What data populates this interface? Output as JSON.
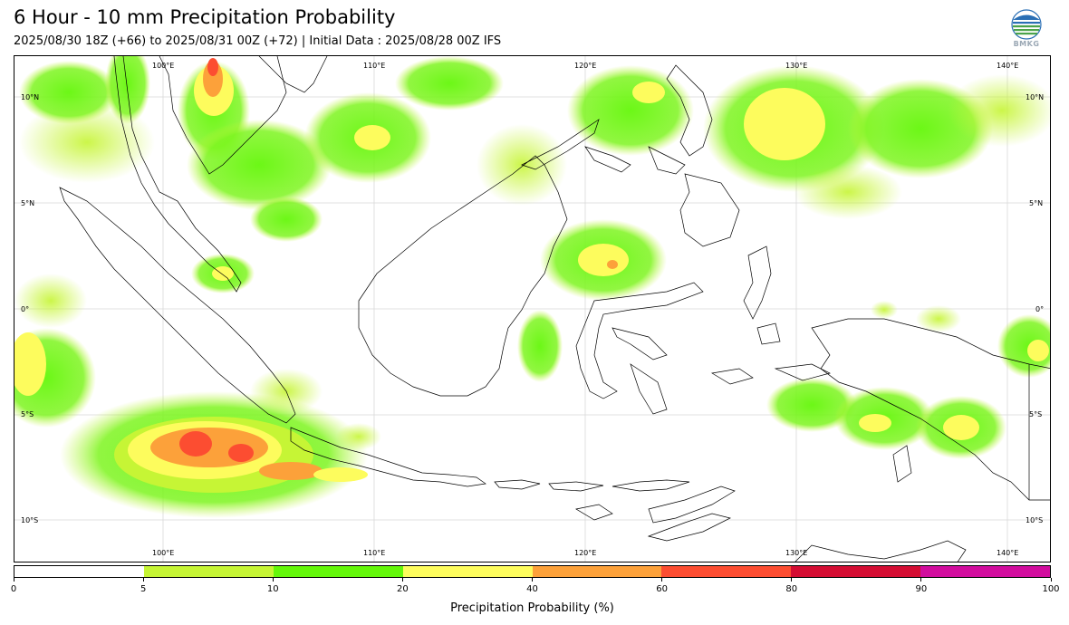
{
  "title": "6 Hour - 10 mm Precipitation Probability",
  "subtitle": "2025/08/30 18Z (+66) to 2025/08/31 00Z (+72) | Initial Data : 2025/08/28 00Z IFS",
  "logo": {
    "text": "BMKG",
    "colors": [
      "#2a6fb5",
      "#4aa34a",
      "#ffffff"
    ]
  },
  "map": {
    "lon_labels": [
      "100°E",
      "110°E",
      "120°E",
      "130°E",
      "140°E"
    ],
    "lat_labels": [
      "10°N",
      "5°N",
      "0°",
      "5°S",
      "10°S"
    ],
    "lon_range": [
      93,
      142.2
    ],
    "lat_range": [
      12.2,
      -11.8
    ]
  },
  "colorbar": {
    "label": "Precipitation Probability (%)",
    "ticks": [
      "0",
      "5",
      "10",
      "20",
      "40",
      "60",
      "80",
      "90",
      "100"
    ],
    "colors": [
      "#ffffff",
      "#c6f535",
      "#64f70a",
      "#fdfc5d",
      "#fca13a",
      "#fc4d31",
      "#d40d33",
      "#d20d9e"
    ]
  }
}
